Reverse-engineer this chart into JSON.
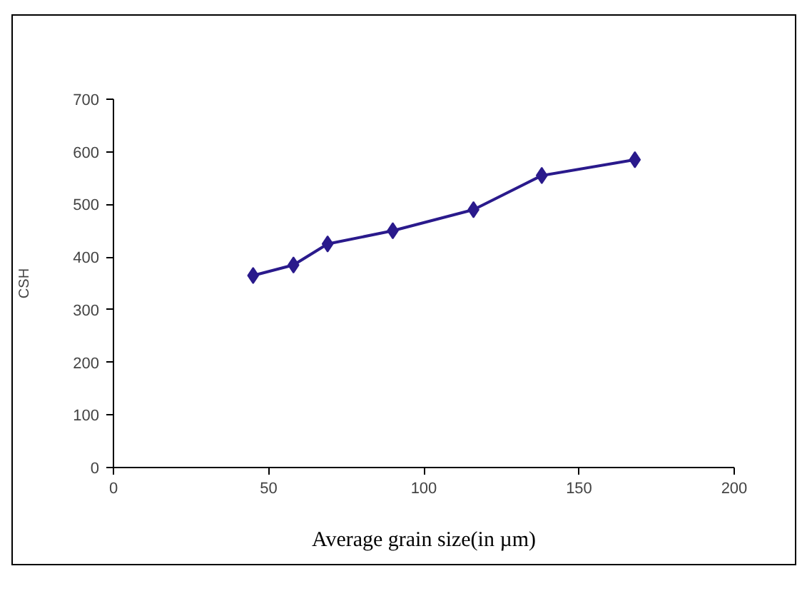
{
  "chart_data": {
    "type": "line",
    "xlabel": "Average grain size(in µm)",
    "ylabel": "CSH",
    "x": [
      45,
      58,
      69,
      90,
      116,
      138,
      168
    ],
    "series": [
      {
        "color": "#2a1a8c",
        "values": [
          365,
          385,
          425,
          450,
          490,
          555,
          585
        ]
      }
    ],
    "xlim": [
      0,
      200
    ],
    "xticks": [
      0,
      50,
      100,
      150,
      200
    ],
    "ylim": [
      0,
      700
    ],
    "yticks": [
      0,
      100,
      200,
      300,
      400,
      500,
      600,
      700
    ],
    "grid": false,
    "marker": "diamond",
    "line_style": "solid"
  }
}
